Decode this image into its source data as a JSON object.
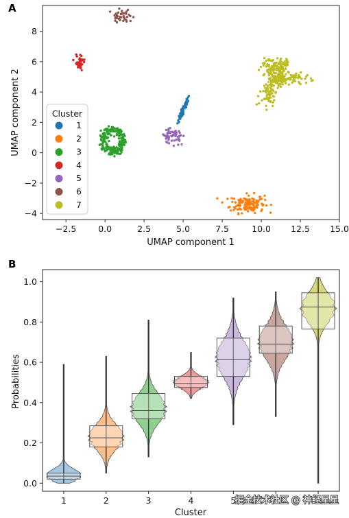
{
  "watermark": "掘金技术社区 @ 神经星星",
  "chart_data": [
    {
      "panel": "A",
      "type": "scatter",
      "xlabel": "UMAP component 1",
      "ylabel": "UMAP component 2",
      "xlim": [
        -4.0,
        15.0
      ],
      "ylim": [
        -4.4,
        9.7
      ],
      "xticks": [
        -2.5,
        0.0,
        2.5,
        5.0,
        7.5,
        10.0,
        12.5,
        15.0
      ],
      "xtick_labels": [
        "−2.5",
        "0.0",
        "2.5",
        "5.0",
        "7.5",
        "10.0",
        "12.5",
        "15.0"
      ],
      "yticks": [
        -4,
        -2,
        0,
        2,
        4,
        6,
        8
      ],
      "ytick_labels": [
        "−4",
        "−2",
        "0",
        "2",
        "4",
        "6",
        "8"
      ],
      "grid": false,
      "legend": {
        "title": "Cluster",
        "placement": "middle-left"
      },
      "series": [
        {
          "name": "1",
          "color": "#1f77b4",
          "cx": 5.0,
          "cy": 2.8,
          "sx": 0.18,
          "sy": 0.45,
          "n": 70,
          "shape": "diagonal"
        },
        {
          "name": "2",
          "color": "#ff7f0e",
          "cx": 9.1,
          "cy": -3.35,
          "sx": 0.55,
          "sy": 0.3,
          "n": 140,
          "shape": "blob"
        },
        {
          "name": "3",
          "color": "#2ca02c",
          "cx": 0.5,
          "cy": 0.8,
          "sx": 0.75,
          "sy": 0.7,
          "n": 230,
          "shape": "ring"
        },
        {
          "name": "4",
          "color": "#d62728",
          "cx": -1.6,
          "cy": 6.0,
          "sx": 0.15,
          "sy": 0.3,
          "n": 35,
          "shape": "blob"
        },
        {
          "name": "5",
          "color": "#9467bd",
          "cx": 4.4,
          "cy": 1.1,
          "sx": 0.35,
          "sy": 0.22,
          "n": 55,
          "shape": "blob"
        },
        {
          "name": "6",
          "color": "#8c564b",
          "cx": 1.0,
          "cy": 8.9,
          "sx": 0.35,
          "sy": 0.25,
          "n": 40,
          "shape": "blob"
        },
        {
          "name": "7",
          "color": "#bcbd22",
          "cx": 11.0,
          "cy": 4.8,
          "sx": 1.1,
          "sy": 0.9,
          "n": 320,
          "shape": "star"
        }
      ]
    },
    {
      "panel": "B",
      "type": "violin",
      "xlabel": "Cluster",
      "ylabel": "Probabilities",
      "ylim": [
        -0.04,
        1.06
      ],
      "yticks": [
        0.0,
        0.2,
        0.4,
        0.6,
        0.8,
        1.0
      ],
      "ytick_labels": [
        "0.0",
        "0.2",
        "0.4",
        "0.6",
        "0.8",
        "1.0"
      ],
      "categories": [
        "1",
        "2",
        "3",
        "4",
        "5",
        "6",
        "7"
      ],
      "grid": false,
      "series": [
        {
          "name": "1",
          "color": "#a6c5df",
          "min": 0.0,
          "max": 0.59,
          "q1": 0.02,
          "median": 0.035,
          "q3": 0.05,
          "mean": 0.04,
          "sd": 0.03
        },
        {
          "name": "2",
          "color": "#fdc08d",
          "min": 0.05,
          "max": 0.63,
          "q1": 0.18,
          "median": 0.225,
          "q3": 0.285,
          "mean": 0.23,
          "sd": 0.06
        },
        {
          "name": "3",
          "color": "#8fd08f",
          "min": 0.13,
          "max": 0.81,
          "q1": 0.32,
          "median": 0.36,
          "q3": 0.445,
          "mean": 0.37,
          "sd": 0.07
        },
        {
          "name": "4",
          "color": "#f29a9a",
          "min": 0.42,
          "max": 0.65,
          "q1": 0.475,
          "median": 0.495,
          "q3": 0.53,
          "mean": 0.5,
          "sd": 0.03
        },
        {
          "name": "5",
          "color": "#cbb7de",
          "min": 0.29,
          "max": 0.92,
          "q1": 0.53,
          "median": 0.615,
          "q3": 0.72,
          "mean": 0.62,
          "sd": 0.09
        },
        {
          "name": "6",
          "color": "#c9a79f",
          "min": 0.33,
          "max": 0.95,
          "q1": 0.645,
          "median": 0.69,
          "q3": 0.78,
          "mean": 0.7,
          "sd": 0.08
        },
        {
          "name": "7",
          "color": "#d6d77a",
          "min": 0.0,
          "max": 1.02,
          "q1": 0.765,
          "median": 0.875,
          "q3": 0.945,
          "mean": 0.87,
          "sd": 0.07
        }
      ]
    }
  ]
}
